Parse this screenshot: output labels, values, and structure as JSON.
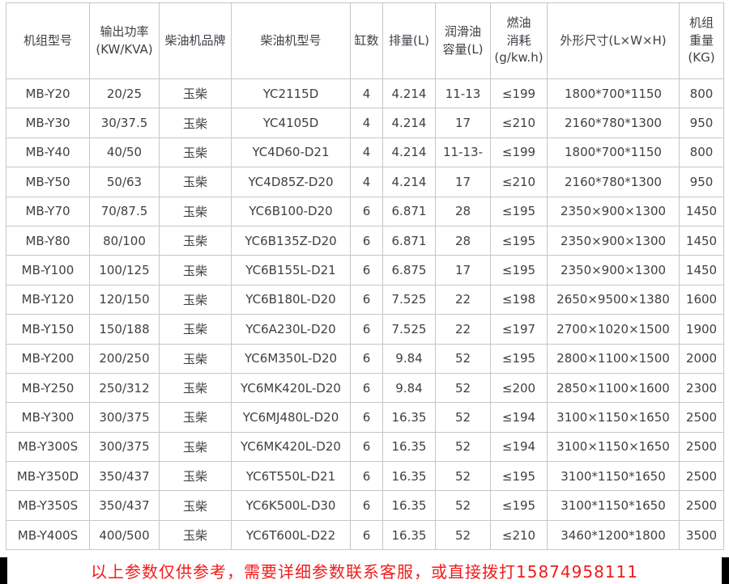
{
  "colors": {
    "background": "#ffffff",
    "border": "#c6c6c6",
    "cell_text": "#3f3f46",
    "notice_text": "#f21b1b",
    "edge_bar": "#000000"
  },
  "table": {
    "columns": [
      {
        "label": "机组型号"
      },
      {
        "label": "输出功率\n(KW/KVA)"
      },
      {
        "label": "柴油机品牌"
      },
      {
        "label": "柴油机型号"
      },
      {
        "label": "缸数"
      },
      {
        "label": "排量(L)"
      },
      {
        "label": "润滑油\n容量(L)"
      },
      {
        "label": "燃油\n消耗\n(g/kw.h)"
      },
      {
        "label": "外形尺寸(L×W×H)"
      },
      {
        "label": "机组\n重量\n(KG)"
      }
    ],
    "rows": [
      [
        "MB-Y20",
        "20/25",
        "玉柴",
        "YC2115D",
        "4",
        "4.214",
        "11-13",
        "≤199",
        "1800*700*1150",
        "800"
      ],
      [
        "MB-Y30",
        "30/37.5",
        "玉柴",
        "YC4105D",
        "4",
        "4.214",
        "17",
        "≤210",
        "2160*780*1300",
        "950"
      ],
      [
        "MB-Y40",
        "40/50",
        "玉柴",
        "YC4D60-D21",
        "4",
        "4.214",
        "11-13-",
        "≤199",
        "1800*700*1150",
        "800"
      ],
      [
        "MB-Y50",
        "50/63",
        "玉柴",
        "YC4D85Z-D20",
        "4",
        "4.214",
        "17",
        "≤210",
        "2160*780*1300",
        "950"
      ],
      [
        "MB-Y70",
        "70/87.5",
        "玉柴",
        "YC6B100-D20",
        "6",
        "6.871",
        "28",
        "≤195",
        "2350×900×1300",
        "1450"
      ],
      [
        "MB-Y80",
        "80/100",
        "玉柴",
        "YC6B135Z-D20",
        "6",
        "6.871",
        "28",
        "≤195",
        "2350×900×1300",
        "1450"
      ],
      [
        "MB-Y100",
        "100/125",
        "玉柴",
        "YC6B155L-D21",
        "6",
        "6.875",
        "17",
        "≤195",
        "2350×900×1300",
        "1450"
      ],
      [
        "MB-Y120",
        "120/150",
        "玉柴",
        "YC6B180L-D20",
        "6",
        "7.525",
        "22",
        "≤198",
        "2650×9500×1380",
        "1600"
      ],
      [
        "MB-Y150",
        "150/188",
        "玉柴",
        "YC6A230L-D20",
        "6",
        "7.525",
        "22",
        "≤197",
        "2700×1020×1500",
        "1900"
      ],
      [
        "MB-Y200",
        "200/250",
        "玉柴",
        "YC6M350L-D20",
        "6",
        "9.84",
        "52",
        "≤195",
        "2800×1100×1500",
        "2000"
      ],
      [
        "MB-Y250",
        "250/312",
        "玉柴",
        "YC6MK420L-D20",
        "6",
        "9.84",
        "52",
        "≤200",
        "2850×1100×1600",
        "2300"
      ],
      [
        "MB-Y300",
        "300/375",
        "玉柴",
        "YC6MJ480L-D20",
        "6",
        "16.35",
        "52",
        "≤194",
        "3100×1150×1650",
        "2500"
      ],
      [
        "MB-Y300S",
        "300/375",
        "玉柴",
        "YC6MK420L-D20",
        "6",
        "16.35",
        "52",
        "≤194",
        "3100×1150×1650",
        "2500"
      ],
      [
        "MB-Y350D",
        "350/437",
        "玉柴",
        "YC6T550L-D21",
        "6",
        "16.35",
        "52",
        "≤195",
        "3100*1150*1650",
        "2500"
      ],
      [
        "MB-Y350S",
        "350/437",
        "玉柴",
        "YC6K500L-D30",
        "6",
        "16.35",
        "52",
        "≤195",
        "3100*1150*1650",
        "2500"
      ],
      [
        "MB-Y400S",
        "400/500",
        "玉柴",
        "YC6T600L-D22",
        "6",
        "16.35",
        "52",
        "≤210",
        "3460*1200*1800",
        "3500"
      ]
    ]
  },
  "footer": {
    "notice": "以上参数仅供参考，需要详细参数联系客服，或直接拨打15874958111"
  }
}
